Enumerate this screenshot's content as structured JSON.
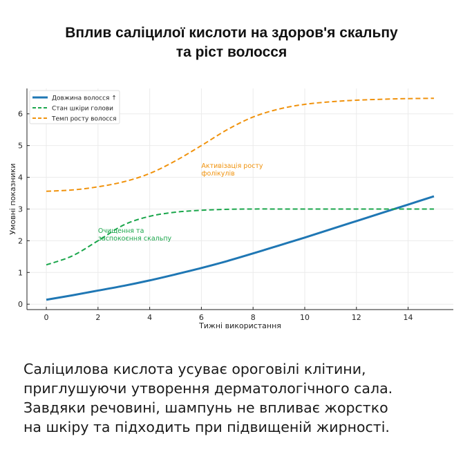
{
  "title_lines": [
    "Вплив саліцилої кислоти на здоров'я скальпу",
    "та ріст волосся"
  ],
  "caption_lines": [
    "Саліцилова кислота усуває ороговілі клітини,",
    "приглушуючи утворення дерматологічного сала.",
    "Завдяки речовині, шампунь не впливає жорстко",
    "на шкіру та підходить при підвищеній жирності."
  ],
  "chart_data": {
    "type": "line",
    "xlabel": "Тижні використання",
    "ylabel": "Умовні показники",
    "xlim": [
      -0.75,
      15.75
    ],
    "ylim": [
      -0.17,
      6.8
    ],
    "xticks": [
      0,
      2,
      4,
      6,
      8,
      10,
      12,
      14
    ],
    "yticks": [
      0,
      1,
      2,
      3,
      4,
      5,
      6
    ],
    "grid": true,
    "legend_placement": "top-left",
    "x": [
      0,
      1,
      2,
      3,
      4,
      5,
      6,
      7,
      8,
      9,
      10,
      11,
      12,
      13,
      14,
      15
    ],
    "series": [
      {
        "name": "Довжина волосся ↑",
        "style": "solid",
        "color": "#1f77b4",
        "values": [
          0.14,
          0.28,
          0.43,
          0.58,
          0.75,
          0.94,
          1.14,
          1.36,
          1.6,
          1.85,
          2.1,
          2.36,
          2.62,
          2.88,
          3.14,
          3.4
        ]
      },
      {
        "name": "Стан шкіри голови",
        "style": "dashed",
        "color": "#1aa64b",
        "values": [
          1.24,
          1.52,
          2.0,
          2.5,
          2.77,
          2.9,
          2.96,
          2.99,
          3.0,
          3.0,
          3.0,
          3.0,
          3.0,
          3.0,
          3.0,
          3.0
        ]
      },
      {
        "name": "Темп росту волосся",
        "style": "dashed",
        "color": "#f0920c",
        "values": [
          3.56,
          3.6,
          3.7,
          3.86,
          4.12,
          4.52,
          5.0,
          5.5,
          5.9,
          6.15,
          6.3,
          6.38,
          6.43,
          6.46,
          6.48,
          6.49
        ]
      }
    ],
    "annotations": [
      {
        "lines": [
          "Активізація росту",
          "фолікулів"
        ],
        "x": 6,
        "y": 4.3,
        "color": "#f0920c"
      },
      {
        "lines": [
          "Очищення та",
          "заспокоєння скальпу"
        ],
        "x": 2,
        "y": 2.25,
        "color": "#1aa64b"
      }
    ]
  }
}
